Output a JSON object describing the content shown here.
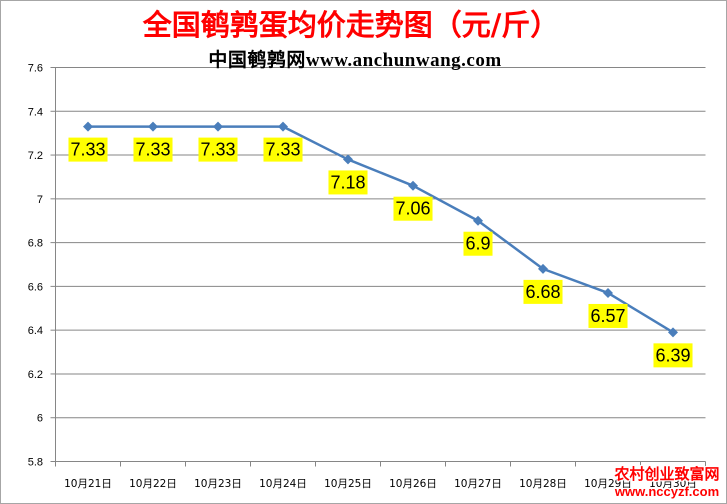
{
  "chart_data": {
    "type": "line",
    "title": "全国鹌鹑蛋均价走势图（元/斤）",
    "subtitle": "中国鹌鹑网www.anchunwang.com",
    "categories": [
      "10月21日",
      "10月22日",
      "10月23日",
      "10月24日",
      "10月25日",
      "10月26日",
      "10月27日",
      "10月28日",
      "10月29日",
      "10月30日"
    ],
    "series": [
      {
        "values": [
          7.33,
          7.33,
          7.33,
          7.33,
          7.18,
          7.06,
          6.9,
          6.68,
          6.57,
          6.39
        ],
        "color": "#4a7ebb"
      }
    ],
    "ylim": [
      5.8,
      7.6
    ],
    "yticks": [
      7.6,
      7.4,
      7.2,
      7,
      6.8,
      6.6,
      6.4,
      6.2,
      6,
      5.8
    ],
    "grid": true,
    "legend": "none",
    "data_labels": "below",
    "colors": {
      "title": "#ff0000",
      "line": "#4a7ebb",
      "label_background": "#ffff00",
      "grid": "#868686"
    }
  },
  "watermark": {
    "name": "农村创业致富网",
    "url": "www.nccyzf.com",
    "color": "#ff0000"
  }
}
